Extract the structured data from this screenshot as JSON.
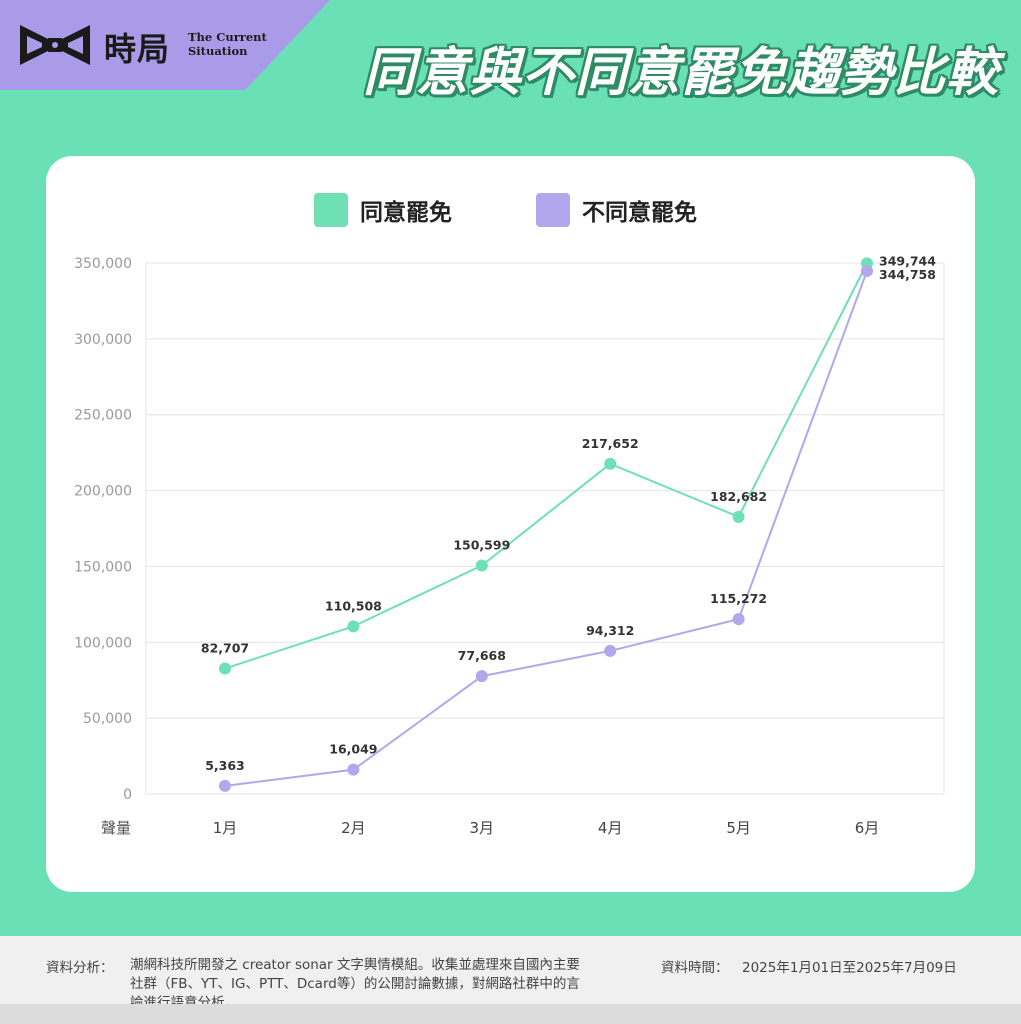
{
  "brand": {
    "name": "時局",
    "name_en": "The Current Situation",
    "band_color": "#a99be8"
  },
  "headline": "同意與不同意罷免趨勢比較",
  "colors": {
    "background": "#6ae0b6",
    "agree": "#6ee0b4",
    "disagree": "#b2a6ec"
  },
  "chart_data": {
    "type": "line",
    "categories": [
      "1月",
      "2月",
      "3月",
      "4月",
      "5月",
      "6月"
    ],
    "series": [
      {
        "name": "同意罷免",
        "values": [
          82707,
          110508,
          150599,
          217652,
          182682,
          349744
        ]
      },
      {
        "name": "不同意罷免",
        "values": [
          5363,
          16049,
          77668,
          94312,
          115272,
          344758
        ]
      }
    ],
    "ylabel": "聲量",
    "ylim": [
      0,
      350000
    ],
    "yticks": [
      0,
      50000,
      100000,
      150000,
      200000,
      250000,
      300000,
      350000
    ],
    "ytick_labels": [
      "0",
      "50,000",
      "100,000",
      "150,000",
      "200,000",
      "250,000",
      "300,000",
      "350,000"
    ],
    "legend_position": "top-center",
    "grid": true
  },
  "footer": {
    "source_label": "資料分析：",
    "source_text": "潮網科技所開發之 creator sonar 文字輿情模組。收集並處理來自國內主要社群（FB、YT、IG、PTT、Dcard等）的公開討論數據，對網路社群中的言論進行語意分析。",
    "date_label": "資料時間：",
    "date_text": "2025年1月01日至2025年7月09日"
  }
}
